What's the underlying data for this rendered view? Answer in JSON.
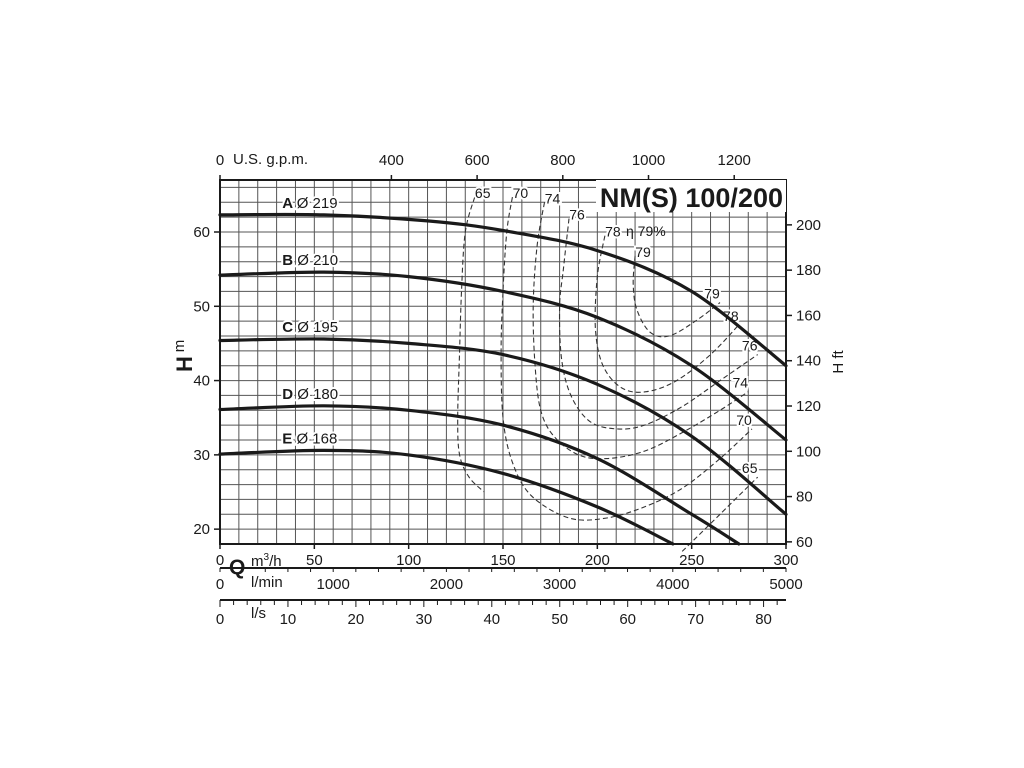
{
  "chart_data": {
    "type": "line",
    "title": "NM(S) 100/200",
    "left_axis": {
      "label_main": "H",
      "label_unit": "m",
      "range": [
        18,
        67
      ],
      "ticks": [
        "20",
        "30",
        "40",
        "50",
        "60"
      ]
    },
    "right_axis": {
      "label": "H ft",
      "ticks": [
        "60",
        "80",
        "100",
        "120",
        "140",
        "160",
        "180",
        "200"
      ]
    },
    "top_axis": {
      "label": "U.S. g.p.m.",
      "range": [
        0,
        1320
      ],
      "ticks": [
        "0",
        "400",
        "600",
        "800",
        "1000",
        "1200"
      ]
    },
    "x_axis": {
      "label_main": "Q",
      "label_unit_prefix": "m",
      "label_unit_sup": "3",
      "label_unit_suffix": "/h",
      "range": [
        0,
        300
      ],
      "ticks": [
        "0",
        "50",
        "100",
        "150",
        "200",
        "250",
        "300"
      ]
    },
    "lmin_axis": {
      "label": "l/min",
      "range": [
        0,
        5000
      ],
      "ticks": [
        "0",
        "1000",
        "2000",
        "3000",
        "4000",
        "5000"
      ]
    },
    "ls_axis": {
      "label": "l/s",
      "range": [
        0,
        83.3
      ],
      "ticks": [
        "0",
        "10",
        "20",
        "30",
        "40",
        "50",
        "60",
        "70",
        "80"
      ]
    },
    "curves": [
      {
        "letter": "A",
        "dia": "Ø 219",
        "q": [
          0,
          55,
          110,
          150,
          200,
          250,
          300
        ],
        "h": [
          62.3,
          62.3,
          61.5,
          60.2,
          57.5,
          52.0,
          42.0
        ]
      },
      {
        "letter": "B",
        "dia": "Ø 210",
        "q": [
          0,
          55,
          100,
          150,
          200,
          250,
          300
        ],
        "h": [
          54.2,
          54.6,
          54.0,
          52.0,
          48.5,
          42.0,
          32.0
        ]
      },
      {
        "letter": "C",
        "dia": "Ø 195",
        "q": [
          0,
          55,
          100,
          150,
          200,
          250,
          300
        ],
        "h": [
          45.4,
          45.6,
          45.0,
          43.5,
          39.5,
          32.5,
          22.0
        ]
      },
      {
        "letter": "D",
        "dia": "Ø 180",
        "q": [
          0,
          55,
          100,
          150,
          200,
          250,
          275
        ],
        "h": [
          36.1,
          36.6,
          36.0,
          34.0,
          29.5,
          22.0,
          16.5
        ]
      },
      {
        "letter": "E",
        "dia": "Ø 168",
        "q": [
          0,
          55,
          100,
          150,
          200,
          240
        ],
        "h": [
          30.1,
          30.6,
          30.0,
          27.5,
          23.0,
          18.0
        ]
      }
    ],
    "efficiency_curves": [
      {
        "label": "65",
        "pts": [
          [
            135,
            64.7
          ],
          [
            130,
            60
          ],
          [
            128,
            52
          ],
          [
            127,
            44
          ],
          [
            126,
            35
          ],
          [
            127,
            30
          ],
          [
            132,
            27
          ],
          [
            140,
            25
          ]
        ],
        "label2": "65",
        "pts2": [
          [
            245,
            17.0
          ],
          [
            265,
            22
          ],
          [
            285,
            27
          ]
        ]
      },
      {
        "label": "70",
        "pts": [
          [
            155,
            64.7
          ],
          [
            152,
            60
          ],
          [
            150,
            52
          ],
          [
            149,
            44
          ],
          [
            150,
            35
          ],
          [
            155,
            29
          ],
          [
            165,
            24.5
          ],
          [
            185,
            21.5
          ],
          [
            205,
            21.5
          ],
          [
            225,
            23
          ],
          [
            245,
            25.5
          ],
          [
            265,
            29.5
          ],
          [
            282,
            33.5
          ]
        ]
      },
      {
        "label": "74",
        "pts": [
          [
            172,
            64.0
          ],
          [
            168,
            58
          ],
          [
            166,
            50
          ],
          [
            167,
            42
          ],
          [
            170,
            36
          ],
          [
            177,
            32.5
          ],
          [
            190,
            30
          ],
          [
            205,
            29.5
          ],
          [
            225,
            30.5
          ],
          [
            245,
            33
          ],
          [
            265,
            36
          ],
          [
            280,
            38.5
          ]
        ]
      },
      {
        "label": "76",
        "pts": [
          [
            185,
            61.8
          ],
          [
            182,
            55
          ],
          [
            180,
            50
          ],
          [
            181,
            43
          ],
          [
            186,
            38
          ],
          [
            196,
            34.5
          ],
          [
            210,
            33.5
          ],
          [
            225,
            34
          ],
          [
            245,
            36.5
          ],
          [
            265,
            40
          ],
          [
            285,
            43.5
          ]
        ]
      },
      {
        "label": "78",
        "pts": [
          [
            204,
            59.5
          ],
          [
            200,
            54
          ],
          [
            199,
            47
          ],
          [
            203,
            42
          ],
          [
            213,
            39
          ],
          [
            226,
            38.5
          ],
          [
            242,
            40
          ],
          [
            260,
            43.5
          ],
          [
            275,
            47.5
          ]
        ]
      },
      {
        "label": "79",
        "pts": [
          [
            220,
            56.8
          ],
          [
            219,
            53
          ],
          [
            221,
            49.5
          ],
          [
            228,
            46.5
          ],
          [
            238,
            46
          ],
          [
            252,
            48
          ],
          [
            265,
            50.5
          ]
        ]
      }
    ],
    "eta_label": "η 79%"
  }
}
